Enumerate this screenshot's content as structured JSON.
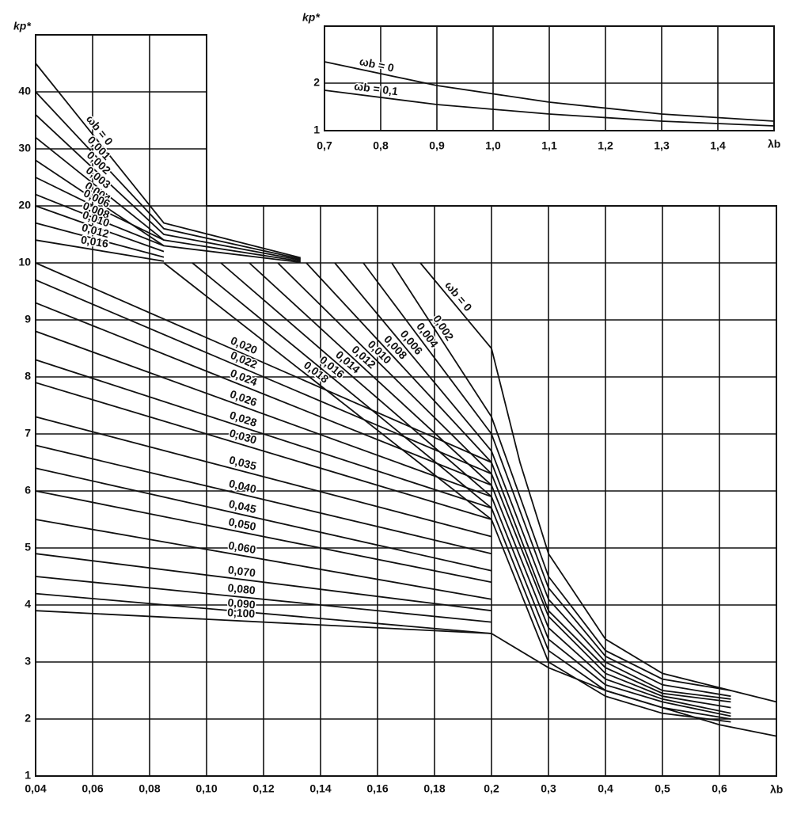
{
  "chart_data": [
    {
      "type": "line",
      "ylabel": "kp*",
      "xlabel": "λb",
      "color": "#111111",
      "grid": true,
      "xlim": [
        0.04,
        0.7
      ],
      "ylim": [
        1,
        50
      ],
      "xticks": [
        {
          "value": 0.04,
          "label": "0,04"
        },
        {
          "value": 0.06,
          "label": "0,06"
        },
        {
          "value": 0.08,
          "label": "0,08"
        },
        {
          "value": 0.1,
          "label": "0,10"
        },
        {
          "value": 0.12,
          "label": "0,12"
        },
        {
          "value": 0.14,
          "label": "0,14"
        },
        {
          "value": 0.16,
          "label": "0,16"
        },
        {
          "value": 0.18,
          "label": "0,18"
        },
        {
          "value": 0.2,
          "label": "0,2"
        },
        {
          "value": 0.3,
          "label": "0,3"
        },
        {
          "value": 0.4,
          "label": "0,4"
        },
        {
          "value": 0.5,
          "label": "0,5"
        },
        {
          "value": 0.6,
          "label": "0,6"
        }
      ],
      "yticks": [
        1,
        2,
        3,
        4,
        5,
        6,
        7,
        8,
        9,
        10,
        20,
        30,
        40
      ],
      "series": [
        {
          "name": "ωb = 0",
          "x": [
            0.04,
            0.085,
            0.133
          ],
          "values": [
            45,
            17,
            10.9
          ]
        },
        {
          "name": "0,001",
          "x": [
            0.04,
            0.085,
            0.133
          ],
          "values": [
            40,
            16,
            10.7
          ]
        },
        {
          "name": "0,002",
          "x": [
            0.04,
            0.085,
            0.133
          ],
          "values": [
            36,
            15,
            10.5
          ]
        },
        {
          "name": "0,003",
          "x": [
            0.04,
            0.085,
            0.133
          ],
          "values": [
            32,
            14,
            10.3
          ]
        },
        {
          "name": "0,004",
          "x": [
            0.04,
            0.085,
            0.133
          ],
          "values": [
            28,
            13,
            10.1
          ]
        },
        {
          "name": "0,006",
          "x": [
            0.04,
            0.085
          ],
          "values": [
            25,
            14
          ]
        },
        {
          "name": "0,008",
          "x": [
            0.04,
            0.085
          ],
          "values": [
            22,
            13
          ]
        },
        {
          "name": "0,010",
          "x": [
            0.04,
            0.085
          ],
          "values": [
            20,
            12
          ]
        },
        {
          "name": "0,012",
          "x": [
            0.04,
            0.085
          ],
          "values": [
            17,
            11
          ]
        },
        {
          "name": "0,016",
          "x": [
            0.04,
            0.085
          ],
          "values": [
            14,
            10.3
          ]
        },
        {
          "name": "ωb = 0",
          "x": [
            0.175,
            0.2,
            0.25,
            0.3,
            0.4,
            0.5,
            0.7
          ],
          "values": [
            10,
            8.5,
            6.5,
            4.9,
            3.4,
            2.8,
            2.3
          ]
        },
        {
          "name": "0,002",
          "x": [
            0.165,
            0.2,
            0.3,
            0.4,
            0.5,
            0.62
          ],
          "values": [
            10,
            7.3,
            4.5,
            3.2,
            2.7,
            2.5
          ]
        },
        {
          "name": "0,004",
          "x": [
            0.155,
            0.2,
            0.3,
            0.4,
            0.5,
            0.62
          ],
          "values": [
            10,
            7.0,
            4.3,
            3.1,
            2.6,
            2.4
          ]
        },
        {
          "name": "0,006",
          "x": [
            0.145,
            0.2,
            0.3,
            0.4,
            0.5,
            0.62
          ],
          "values": [
            10,
            6.7,
            4.1,
            3.0,
            2.5,
            2.35
          ]
        },
        {
          "name": "0,008",
          "x": [
            0.135,
            0.2,
            0.3,
            0.4,
            0.5,
            0.62
          ],
          "values": [
            10,
            6.5,
            3.9,
            2.9,
            2.45,
            2.3
          ]
        },
        {
          "name": "0,010",
          "x": [
            0.125,
            0.2,
            0.3,
            0.4,
            0.5,
            0.62
          ],
          "values": [
            10,
            6.3,
            3.8,
            2.8,
            2.4,
            2.2
          ]
        },
        {
          "name": "0,012",
          "x": [
            0.115,
            0.2,
            0.3,
            0.4,
            0.5,
            0.62
          ],
          "values": [
            10,
            6.1,
            3.6,
            2.7,
            2.35,
            2.1
          ]
        },
        {
          "name": "0,014",
          "x": [
            0.105,
            0.2,
            0.3,
            0.4,
            0.5,
            0.62
          ],
          "values": [
            10,
            5.9,
            3.4,
            2.6,
            2.3,
            2.05
          ]
        },
        {
          "name": "0,016",
          "x": [
            0.095,
            0.2,
            0.3,
            0.4,
            0.5,
            0.62
          ],
          "values": [
            10,
            5.7,
            3.2,
            2.5,
            2.2,
            2.0
          ]
        },
        {
          "name": "0,018",
          "x": [
            0.085,
            0.2,
            0.3,
            0.4,
            0.5,
            0.62
          ],
          "values": [
            10,
            5.5,
            3.0,
            2.4,
            2.1,
            1.95
          ]
        },
        {
          "name": "0,020",
          "x": [
            0.04,
            0.2
          ],
          "values": [
            10,
            6.5
          ]
        },
        {
          "name": "0,022",
          "x": [
            0.04,
            0.2
          ],
          "values": [
            9.7,
            6.3
          ]
        },
        {
          "name": "0,024",
          "x": [
            0.04,
            0.2
          ],
          "values": [
            9.3,
            6.1
          ]
        },
        {
          "name": "0,026",
          "x": [
            0.04,
            0.2
          ],
          "values": [
            8.8,
            5.9
          ]
        },
        {
          "name": "0,028",
          "x": [
            0.04,
            0.2
          ],
          "values": [
            8.3,
            5.7
          ]
        },
        {
          "name": "0,030",
          "x": [
            0.04,
            0.2
          ],
          "values": [
            7.9,
            5.5
          ]
        },
        {
          "name": "0,035",
          "x": [
            0.04,
            0.2
          ],
          "values": [
            7.3,
            5.2
          ]
        },
        {
          "name": "0,040",
          "x": [
            0.04,
            0.2
          ],
          "values": [
            6.8,
            4.9
          ]
        },
        {
          "name": "0,045",
          "x": [
            0.04,
            0.2
          ],
          "values": [
            6.4,
            4.6
          ]
        },
        {
          "name": "0,050",
          "x": [
            0.04,
            0.2
          ],
          "values": [
            6.0,
            4.4
          ]
        },
        {
          "name": "0,060",
          "x": [
            0.04,
            0.2
          ],
          "values": [
            5.5,
            4.1
          ]
        },
        {
          "name": "0,070",
          "x": [
            0.04,
            0.2
          ],
          "values": [
            4.9,
            3.9
          ]
        },
        {
          "name": "0,080",
          "x": [
            0.04,
            0.2
          ],
          "values": [
            4.5,
            3.7
          ]
        },
        {
          "name": "0,090",
          "x": [
            0.04,
            0.2
          ],
          "values": [
            4.2,
            3.5
          ]
        },
        {
          "name": "0,100",
          "x": [
            0.04,
            0.2,
            0.3,
            0.4,
            0.5,
            0.6,
            0.7
          ],
          "values": [
            3.9,
            3.5,
            2.9,
            2.5,
            2.2,
            1.9,
            1.7
          ]
        }
      ]
    },
    {
      "type": "line",
      "ylabel": "kp*",
      "xlabel": "λb",
      "color": "#111111",
      "grid": true,
      "xlim": [
        0.7,
        1.5
      ],
      "ylim": [
        1,
        3.2
      ],
      "xticks": [
        {
          "value": 0.7,
          "label": "0,7"
        },
        {
          "value": 0.8,
          "label": "0,8"
        },
        {
          "value": 0.9,
          "label": "0,9"
        },
        {
          "value": 1.0,
          "label": "1,0"
        },
        {
          "value": 1.1,
          "label": "1,1"
        },
        {
          "value": 1.2,
          "label": "1,2"
        },
        {
          "value": 1.3,
          "label": "1,3"
        },
        {
          "value": 1.4,
          "label": "1,4"
        }
      ],
      "yticks": [
        1,
        2
      ],
      "series": [
        {
          "name": "ωb = 0",
          "x": [
            0.7,
            0.9,
            1.1,
            1.3,
            1.5
          ],
          "values": [
            2.45,
            1.95,
            1.6,
            1.35,
            1.2
          ]
        },
        {
          "name": "ωb = 0,1",
          "x": [
            0.7,
            0.9,
            1.1,
            1.3,
            1.5
          ],
          "values": [
            1.85,
            1.55,
            1.35,
            1.2,
            1.1
          ]
        }
      ]
    }
  ]
}
